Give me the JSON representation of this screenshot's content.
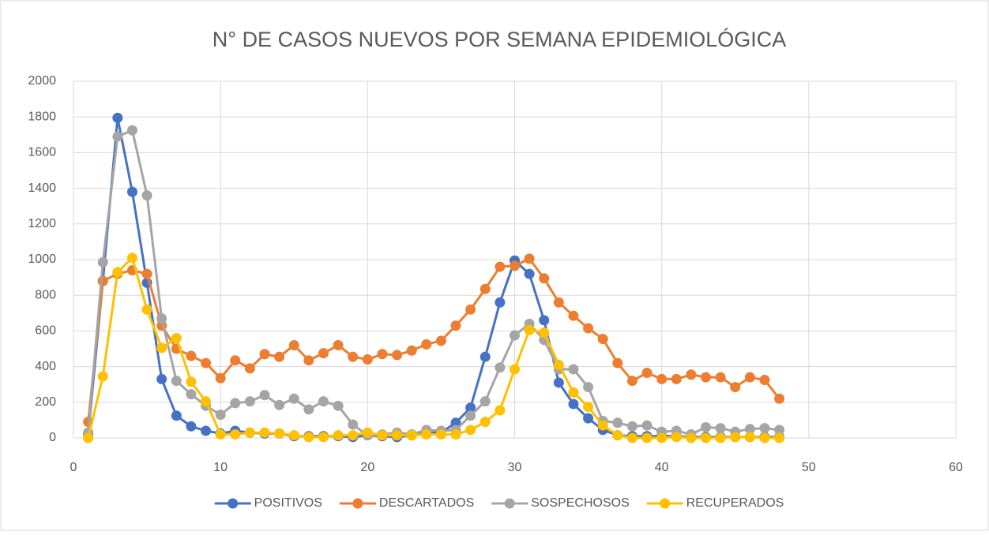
{
  "chart_data": {
    "type": "line",
    "title": "N° DE CASOS NUEVOS POR SEMANA EPIDEMIOLÓGICA",
    "x": [
      1,
      2,
      3,
      4,
      5,
      6,
      7,
      8,
      9,
      10,
      11,
      12,
      13,
      14,
      15,
      16,
      17,
      18,
      19,
      20,
      21,
      22,
      23,
      24,
      25,
      26,
      27,
      28,
      29,
      30,
      31,
      32,
      33,
      34,
      35,
      36,
      37,
      38,
      39,
      40,
      41,
      42,
      43,
      44,
      45,
      46,
      47,
      48
    ],
    "series": [
      {
        "name": "POSITIVOS",
        "color": "#4472c4",
        "values": [
          20,
          880,
          1795,
          1380,
          870,
          330,
          125,
          65,
          40,
          25,
          40,
          30,
          25,
          25,
          10,
          10,
          10,
          10,
          5,
          15,
          10,
          5,
          15,
          30,
          30,
          85,
          170,
          455,
          760,
          995,
          920,
          660,
          310,
          190,
          110,
          45,
          15,
          10,
          10,
          10,
          10,
          5,
          5,
          5,
          5,
          5,
          5,
          5
        ]
      },
      {
        "name": "DESCARTADOS",
        "color": "#ed7d31",
        "values": [
          90,
          880,
          920,
          940,
          920,
          630,
          500,
          460,
          420,
          335,
          435,
          390,
          470,
          455,
          520,
          435,
          475,
          520,
          455,
          440,
          470,
          465,
          490,
          525,
          545,
          630,
          720,
          835,
          960,
          965,
          1005,
          895,
          760,
          685,
          615,
          555,
          420,
          320,
          365,
          330,
          330,
          355,
          340,
          340,
          285,
          340,
          325,
          220
        ]
      },
      {
        "name": "SOSPECHOSOS",
        "color": "#a5a5a5",
        "values": [
          30,
          985,
          1690,
          1725,
          1360,
          670,
          320,
          245,
          180,
          130,
          195,
          205,
          240,
          185,
          220,
          160,
          205,
          180,
          75,
          15,
          20,
          30,
          20,
          45,
          40,
          45,
          125,
          205,
          395,
          575,
          640,
          550,
          385,
          385,
          285,
          95,
          85,
          65,
          70,
          35,
          40,
          20,
          60,
          55,
          35,
          50,
          55,
          45
        ]
      },
      {
        "name": "RECUPERADOS",
        "color": "#ffc000",
        "values": [
          0,
          345,
          930,
          1010,
          720,
          505,
          560,
          315,
          205,
          20,
          20,
          30,
          30,
          25,
          15,
          5,
          5,
          15,
          15,
          30,
          15,
          15,
          15,
          20,
          20,
          20,
          45,
          90,
          155,
          385,
          605,
          590,
          410,
          255,
          175,
          70,
          15,
          0,
          0,
          0,
          5,
          0,
          0,
          0,
          5,
          5,
          0,
          0
        ]
      }
    ],
    "xlim": [
      0,
      60
    ],
    "xticks": [
      0,
      10,
      20,
      30,
      40,
      50,
      60
    ],
    "ylim": [
      0,
      2000
    ],
    "yticks": [
      0,
      200,
      400,
      600,
      800,
      1000,
      1200,
      1400,
      1600,
      1800,
      2000
    ],
    "grid": true,
    "legend": "bottom"
  }
}
